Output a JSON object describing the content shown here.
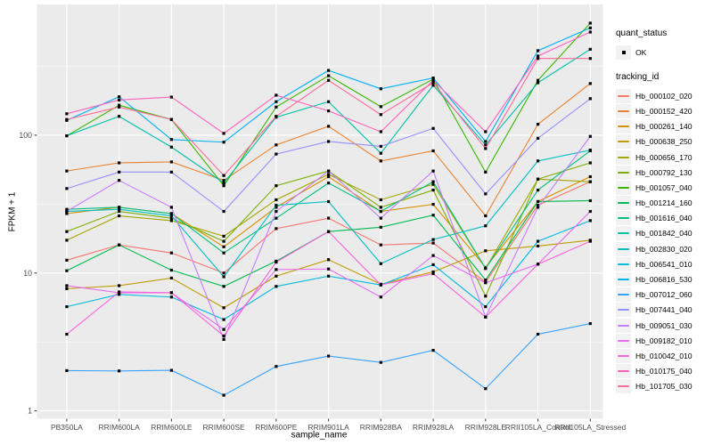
{
  "chart_data": {
    "type": "line",
    "title": "",
    "xlabel": "sample_name",
    "ylabel": "FPKM + 1",
    "y_scale": "log10",
    "y_ticks": [
      1,
      10,
      100
    ],
    "y_minor_ticks": [
      3.162,
      31.62,
      316.2
    ],
    "ylim": [
      1,
      880
    ],
    "grid": "on",
    "categories": [
      "PB350LA",
      "RRIM600LA",
      "RRIM600LE",
      "RRIM600SE",
      "RRIM600PE",
      "RRIM901LA",
      "RRIM928BA",
      "RRIM928LA",
      "RRIM928LE",
      "RRII105LA_Control",
      "RRII105LA_Stressed"
    ],
    "legend": {
      "position": "right",
      "quant_status_title": "quant_status",
      "quant_status_items": [
        {
          "label": "OK",
          "marker": "black-point"
        }
      ],
      "tracking_id_title": "tracking_id"
    },
    "series": [
      {
        "name": "Hb_000102_020",
        "color": "#F8766D",
        "values": [
          12.4,
          16,
          14,
          10,
          21,
          25,
          16,
          16.5,
          8.6,
          31,
          46
        ]
      },
      {
        "name": "Hb_000152_420",
        "color": "#EA8331",
        "values": [
          55,
          63,
          64,
          47,
          85,
          116,
          65,
          77,
          26,
          120,
          237
        ]
      },
      {
        "name": "Hb_000261_140",
        "color": "#D89000",
        "values": [
          27,
          30,
          27,
          15.5,
          30,
          50,
          28,
          31.5,
          11,
          33,
          50
        ]
      },
      {
        "name": "Hb_000638_250",
        "color": "#C09B00",
        "values": [
          7.7,
          8.1,
          9.2,
          5.6,
          9.5,
          12.5,
          8.3,
          10.2,
          14.5,
          15.7,
          17.3
        ]
      },
      {
        "name": "Hb_000656_170",
        "color": "#A3A500",
        "values": [
          17.3,
          26,
          24,
          18.5,
          34,
          52,
          34,
          44,
          10.8,
          48,
          46
        ]
      },
      {
        "name": "Hb_000792_130",
        "color": "#7CAE00",
        "values": [
          20,
          28,
          25,
          17,
          43,
          55,
          30,
          40,
          6.8,
          48,
          63
        ]
      },
      {
        "name": "Hb_001057_040",
        "color": "#39B600",
        "values": [
          99,
          165,
          130,
          43,
          160,
          270,
          161,
          255,
          54,
          250,
          650
        ]
      },
      {
        "name": "Hb_001214_160",
        "color": "#00BB4E",
        "values": [
          10.4,
          16,
          10.5,
          8,
          12.2,
          20,
          21.5,
          26.3,
          8.9,
          33,
          33.5
        ]
      },
      {
        "name": "Hb_001616_040",
        "color": "#00BF7D",
        "values": [
          29,
          30,
          27,
          14,
          25,
          45,
          28,
          46,
          10.8,
          40,
          77
        ]
      },
      {
        "name": "Hb_001842_040",
        "color": "#00C1A3",
        "values": [
          99,
          137,
          82,
          45,
          135,
          175,
          74,
          230,
          85,
          240,
          420
        ]
      },
      {
        "name": "Hb_002830_020",
        "color": "#00BFC4",
        "values": [
          28,
          29,
          26,
          9.4,
          31,
          33,
          11.7,
          17.5,
          22,
          65,
          78
        ]
      },
      {
        "name": "Hb_006541_010",
        "color": "#00BAE0",
        "values": [
          5.7,
          7,
          6.7,
          4.6,
          8,
          9.5,
          8.2,
          11.5,
          5.7,
          17,
          24
        ]
      },
      {
        "name": "Hb_006816_530",
        "color": "#00B0F6",
        "values": [
          128,
          190,
          93,
          89,
          175,
          295,
          217,
          260,
          90,
          410,
          600
        ]
      },
      {
        "name": "Hb_007012_060",
        "color": "#35A2FF",
        "values": [
          1.96,
          1.95,
          1.97,
          1.3,
          2.1,
          2.5,
          2.25,
          2.75,
          1.45,
          3.6,
          4.3
        ]
      },
      {
        "name": "Hb_007441_040",
        "color": "#9590FF",
        "values": [
          41,
          54,
          54,
          28,
          73,
          90,
          83,
          112,
          37.5,
          95,
          184
        ]
      },
      {
        "name": "Hb_009051_030",
        "color": "#C77CFF",
        "values": [
          28,
          47,
          30,
          3.3,
          28,
          55,
          25,
          55,
          4.8,
          30,
          98
        ]
      },
      {
        "name": "Hb_009182_010",
        "color": "#E76BF3",
        "values": [
          8.1,
          7.2,
          7.2,
          3.9,
          10.6,
          10.7,
          6.7,
          13.4,
          8.5,
          11.6,
          28
        ]
      },
      {
        "name": "Hb_010042_010",
        "color": "#FA62DB",
        "values": [
          3.6,
          7.3,
          7.2,
          3.5,
          12,
          20,
          8.2,
          9.9,
          4.8,
          11.6,
          17
        ]
      },
      {
        "name": "Hb_010175_040",
        "color": "#FF62BC",
        "values": [
          143,
          180,
          189,
          103,
          195,
          150,
          106,
          250,
          106,
          375,
          560
        ]
      },
      {
        "name": "Hb_101705_030",
        "color": "#FF6A98",
        "values": [
          130,
          160,
          130,
          51,
          137,
          250,
          141,
          240,
          80,
          360,
          360
        ]
      }
    ]
  },
  "style": {
    "panel_bg": "#EBEBEB",
    "grid_major": "#FFFFFF",
    "grid_minor": "#F7F7F7",
    "tick_text": "#4D4D4D",
    "tick_mark": "#333333",
    "marker_color": "#000000",
    "legend_key_bg": "#F2F2F2"
  }
}
